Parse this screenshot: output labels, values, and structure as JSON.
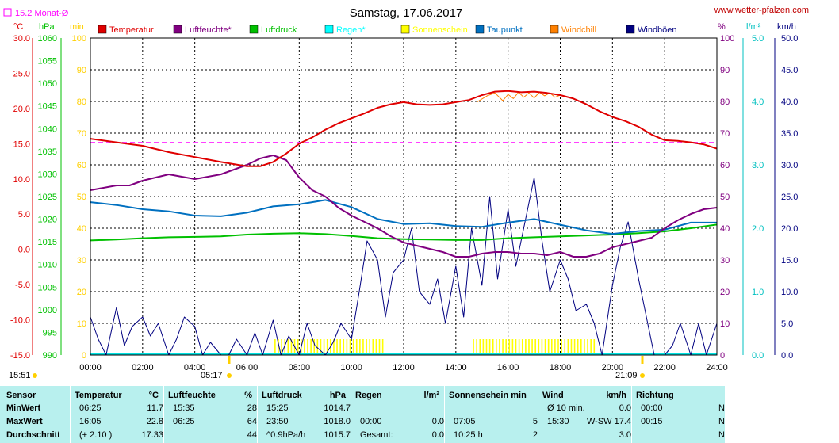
{
  "header": {
    "title": "Samstag, 17.06.2017",
    "site": "www.wetter-pfalzen.com",
    "month_avg": "15.2 Monat-Ø",
    "sunrise": "05:17",
    "sunset": "21:09",
    "time_left": "15:51"
  },
  "units": {
    "temp": "°C",
    "pressure": "hPa",
    "minutes": "min",
    "percent": "%",
    "rain": "l/m²",
    "wind": "km/h"
  },
  "legend": [
    {
      "label": "Temperatur",
      "color": "#e00000",
      "dimmed": false
    },
    {
      "label": "Luftfeuchte*",
      "color": "#800080",
      "dimmed": false
    },
    {
      "label": "Luftdruck",
      "color": "#00c000",
      "dimmed": false
    },
    {
      "label": "Regen*",
      "color": "#00ffff",
      "dimmed": true
    },
    {
      "label": "Sonnenschein",
      "color": "#ffff00",
      "dimmed": true
    },
    {
      "label": "Taupunkt",
      "color": "#0070c0",
      "dimmed": false
    },
    {
      "label": "Windchill",
      "color": "#ff8000",
      "dimmed": false
    },
    {
      "label": "Windböen",
      "color": "#000080",
      "dimmed": false
    }
  ],
  "chart_data": {
    "type": "line",
    "title": "Samstag, 17.06.2017",
    "x_ticks": [
      "00:00",
      "02:00",
      "04:00",
      "06:00",
      "08:00",
      "10:00",
      "12:00",
      "14:00",
      "16:00",
      "18:00",
      "20:00",
      "22:00",
      "24:00"
    ],
    "axes": {
      "temp": {
        "ticks": [
          "30.0",
          "25.0",
          "20.0",
          "15.0",
          "10.0",
          "5.0",
          "0.0",
          "-5.0",
          "-10.0",
          "-15.0"
        ],
        "ylim": [
          -15,
          30
        ]
      },
      "pressure": {
        "ticks": [
          "1060",
          "1055",
          "1050",
          "1045",
          "1040",
          "1035",
          "1030",
          "1025",
          "1020",
          "1015",
          "1010",
          "1005",
          "1000",
          "995",
          "990"
        ],
        "ylim": [
          990,
          1060
        ]
      },
      "sun_min": {
        "ticks": [
          "100",
          "90",
          "80",
          "70",
          "60",
          "50",
          "40",
          "30",
          "20",
          "10",
          "0"
        ],
        "ylim": [
          0,
          100
        ]
      },
      "humidity": {
        "ticks": [
          "100",
          "90",
          "80",
          "70",
          "60",
          "50",
          "40",
          "30",
          "20",
          "10",
          "0"
        ],
        "ylim": [
          0,
          100
        ]
      },
      "rain": {
        "ticks": [
          "5.0",
          "4.0",
          "3.0",
          "2.0",
          "1.0",
          "0.0"
        ],
        "ylim": [
          0,
          5
        ]
      },
      "wind": {
        "ticks": [
          "50.0",
          "45.0",
          "40.0",
          "35.0",
          "30.0",
          "25.0",
          "20.0",
          "15.0",
          "10.0",
          "5.0",
          "0.0"
        ],
        "ylim": [
          0,
          50
        ]
      }
    },
    "month_avg_temp": 15.2,
    "series": [
      {
        "name": "Temperatur",
        "axis": "temp",
        "color": "#e00000",
        "x": [
          0,
          1,
          2,
          3,
          4,
          5,
          5.5,
          6,
          6.5,
          7,
          7.5,
          8,
          8.5,
          9,
          9.5,
          10,
          10.5,
          11,
          11.5,
          12,
          12.5,
          13,
          13.5,
          14,
          14.5,
          15,
          15.5,
          16,
          16.5,
          17,
          17.5,
          18,
          18.5,
          19,
          19.5,
          20,
          20.5,
          21,
          21.5,
          22,
          22.5,
          23,
          23.5,
          24
        ],
        "values": [
          15.7,
          15.2,
          14.7,
          13.8,
          13.1,
          12.4,
          12.1,
          11.8,
          11.8,
          12.4,
          13.6,
          15.0,
          15.9,
          17.0,
          17.9,
          18.6,
          19.3,
          20.1,
          20.6,
          20.9,
          20.6,
          20.5,
          20.6,
          20.9,
          21.2,
          21.9,
          22.4,
          22.5,
          22.3,
          22.4,
          22.2,
          21.9,
          21.4,
          20.6,
          19.6,
          18.8,
          18.2,
          17.4,
          16.3,
          15.5,
          15.4,
          15.2,
          14.9,
          14.3
        ]
      },
      {
        "name": "Luftfeuchte*",
        "axis": "humidity",
        "color": "#800080",
        "x": [
          0,
          1,
          1.5,
          2,
          3,
          4,
          5,
          6,
          6.5,
          7,
          7.5,
          8,
          8.5,
          9,
          9.5,
          10,
          10.5,
          11,
          11.5,
          12,
          12.5,
          13,
          13.5,
          14,
          14.5,
          15,
          15.5,
          16,
          16.5,
          17,
          17.5,
          18,
          18.5,
          19,
          19.5,
          20,
          20.5,
          21,
          21.5,
          22,
          22.5,
          23,
          23.5,
          24
        ],
        "values": [
          52,
          53.5,
          53.5,
          55,
          57,
          55.5,
          57,
          60,
          62,
          63,
          61.5,
          56,
          52,
          50,
          46.5,
          44,
          42,
          40,
          37.5,
          35.5,
          34.5,
          33.5,
          32.5,
          31,
          31,
          32,
          32.5,
          32.5,
          32,
          32,
          31.5,
          32.5,
          31,
          31,
          32,
          34,
          35,
          36,
          37,
          40,
          42.5,
          44.5,
          46,
          46.5
        ]
      },
      {
        "name": "Luftdruck",
        "axis": "pressure",
        "color": "#00c000",
        "x": [
          0,
          1,
          2,
          3,
          4,
          5,
          6,
          7,
          8,
          9,
          10,
          11,
          12,
          13,
          14,
          15,
          16,
          17,
          18,
          19,
          20,
          21,
          22,
          23,
          24
        ],
        "values": [
          1015.3,
          1015.5,
          1015.8,
          1016.0,
          1016.1,
          1016.2,
          1016.6,
          1016.8,
          1016.9,
          1016.7,
          1016.3,
          1015.8,
          1015.6,
          1015.5,
          1015.4,
          1015.4,
          1015.8,
          1016.0,
          1016.2,
          1016.4,
          1016.6,
          1016.9,
          1017.3,
          1018.0,
          1018.8
        ]
      },
      {
        "name": "Taupunkt",
        "axis": "temp",
        "color": "#0070c0",
        "x": [
          0,
          1,
          2,
          3,
          4,
          5,
          6,
          7,
          8,
          9,
          10,
          11,
          12,
          13,
          14,
          15,
          16,
          17,
          18,
          19,
          20,
          21,
          22,
          23,
          24
        ],
        "values": [
          6.7,
          6.3,
          5.7,
          5.4,
          4.8,
          4.7,
          5.2,
          6.1,
          6.4,
          7.0,
          6.0,
          4.3,
          3.6,
          3.7,
          3.3,
          3.2,
          3.8,
          4.3,
          3.5,
          2.7,
          2.2,
          2.6,
          2.8,
          3.8,
          3.8
        ]
      },
      {
        "name": "Windchill",
        "axis": "temp",
        "color": "#ff8000",
        "x": [
          14.8,
          15.2,
          15.5,
          15.8,
          16,
          16.2,
          16.4,
          16.6,
          16.8,
          17,
          17.2,
          17.4,
          17.6,
          17.8,
          18
        ],
        "values": [
          20.9,
          21.8,
          22.2,
          21.1,
          22.0,
          21.4,
          22.3,
          21.6,
          22.2,
          21.5,
          22.3,
          21.8,
          22.2,
          21.6,
          21.9
        ]
      },
      {
        "name": "Windböen",
        "axis": "wind",
        "color": "#000080",
        "x": [
          0,
          0.3,
          0.6,
          1,
          1.3,
          1.6,
          2,
          2.3,
          2.6,
          3,
          3.3,
          3.6,
          4,
          4.3,
          4.6,
          5,
          5.3,
          5.6,
          6,
          6.3,
          6.6,
          7,
          7.3,
          7.6,
          8,
          8.3,
          8.6,
          9,
          9.3,
          9.6,
          10,
          10.3,
          10.6,
          11,
          11.3,
          11.6,
          12,
          12.3,
          12.6,
          13,
          13.3,
          13.6,
          14,
          14.3,
          14.6,
          15,
          15.3,
          15.6,
          16,
          16.3,
          16.6,
          17,
          17.3,
          17.6,
          18,
          18.3,
          18.6,
          19,
          19.3,
          19.6,
          20,
          20.3,
          20.6,
          21,
          21.3,
          21.6,
          22,
          22.3,
          22.6,
          23,
          23.3,
          23.6,
          24
        ],
        "values": [
          6,
          2.5,
          0,
          7.5,
          1.5,
          4.5,
          6,
          3,
          5,
          0,
          2.5,
          6,
          4.5,
          0,
          2,
          0,
          0,
          2.5,
          0,
          3.5,
          0,
          5.5,
          0,
          3,
          0,
          5,
          1.5,
          0,
          2,
          5,
          2.5,
          10,
          18,
          15,
          6,
          13,
          15,
          20,
          10,
          8,
          12,
          5,
          14,
          6,
          20,
          11,
          25,
          12,
          23,
          14,
          20,
          28,
          18,
          10,
          15,
          12,
          7,
          8,
          5,
          0,
          11,
          17,
          21,
          12,
          6,
          0,
          0,
          1.5,
          5,
          0,
          5,
          0,
          5
        ]
      }
    ],
    "sunshine_bars": [
      {
        "from": 7.05,
        "to": 11.25
      },
      {
        "from": 14.65,
        "to": 19.3
      }
    ],
    "sunshine_value": 5
  },
  "table": {
    "columns": [
      {
        "head": "Sensor",
        "unit": ""
      },
      {
        "head": "Temperatur",
        "unit": "°C"
      },
      {
        "head": "Luftfeuchte",
        "unit": "%"
      },
      {
        "head": "Luftdruck",
        "unit": "hPa"
      },
      {
        "head": "Regen",
        "unit": "l/m²"
      },
      {
        "head": "Sonnenschein min",
        "unit": ""
      },
      {
        "head": "Wind",
        "unit": "km/h"
      },
      {
        "head": "Richtung",
        "unit": ""
      }
    ],
    "rows": [
      {
        "label": "MinWert",
        "temp_t": "06:25",
        "temp_v": "11.7",
        "hum_t": "15:35",
        "hum_v": "28",
        "pres_t": "15:25",
        "pres_v": "1014.7",
        "rain_t": "",
        "rain_v": "",
        "sun_t": "",
        "sun_v": "",
        "wind_t": "Ø 10 min.",
        "wind_v": "0.0",
        "dir_t": "00:00",
        "dir_v": "N"
      },
      {
        "label": "MaxWert",
        "temp_t": "16:05",
        "temp_v": "22.8",
        "hum_t": "06:25",
        "hum_v": "64",
        "pres_t": "23:50",
        "pres_v": "1018.0",
        "rain_t": "00:00",
        "rain_v": "0.0",
        "sun_t": "07:05",
        "sun_v": "5",
        "wind_t": "15:30",
        "wind_v": "W-SW 17.4",
        "dir_t": "00:15",
        "dir_v": "N"
      },
      {
        "label": "Durchschnitt",
        "temp_t": "(+ 2.10 )",
        "temp_v": "17.33",
        "hum_t": "",
        "hum_v": "44",
        "pres_t": "^0.9hPa/h",
        "pres_v": "1015.7",
        "rain_t": "Gesamt:",
        "rain_v": "0.0",
        "sun_t": "10:25 h",
        "sun_v": "2",
        "wind_t": "",
        "wind_v": "3.0",
        "dir_t": "",
        "dir_v": "N"
      }
    ]
  }
}
